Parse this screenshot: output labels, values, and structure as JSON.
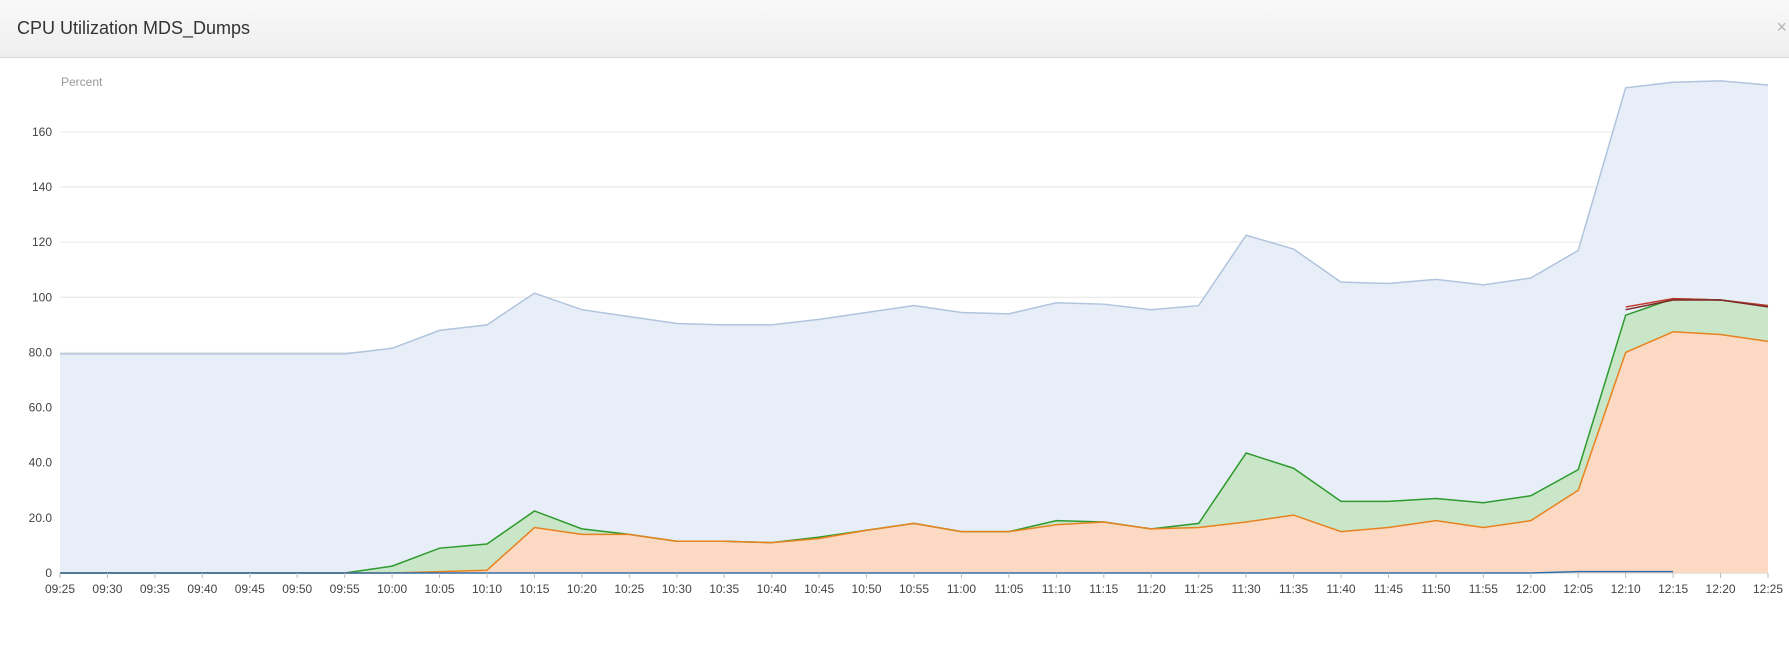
{
  "panel": {
    "title": "CPU Utilization MDS_Dumps",
    "close_glyph": "×"
  },
  "chart_data": {
    "type": "area",
    "title": "CPU Utilization MDS_Dumps",
    "ylabel": "Percent",
    "xlabel": "",
    "ylim": [
      0,
      177
    ],
    "y_ticks": [
      "0",
      "20.0",
      "40.0",
      "60.0",
      "80.0",
      "100",
      "120",
      "140",
      "160"
    ],
    "y_tick_values": [
      0,
      20,
      40,
      60,
      80,
      100,
      120,
      140,
      160
    ],
    "grid": true,
    "x": [
      "09:25",
      "09:30",
      "09:35",
      "09:40",
      "09:45",
      "09:50",
      "09:55",
      "10:00",
      "10:05",
      "10:10",
      "10:15",
      "10:20",
      "10:25",
      "10:30",
      "10:35",
      "10:40",
      "10:45",
      "10:50",
      "10:55",
      "11:00",
      "11:05",
      "11:10",
      "11:15",
      "11:20",
      "11:25",
      "11:30",
      "11:35",
      "11:40",
      "11:45",
      "11:50",
      "11:55",
      "12:00",
      "12:05",
      "12:10",
      "12:15",
      "12:20",
      "12:25"
    ],
    "series": [
      {
        "color": "#b0c4de",
        "fill": "#e8eef8",
        "values": [
          79.5,
          79.5,
          79.5,
          79.5,
          79.5,
          79.5,
          79.5,
          81.5,
          88,
          90,
          101.5,
          95.5,
          93,
          90.5,
          90,
          90,
          92,
          94.5,
          97,
          94.5,
          94,
          98,
          97.5,
          95.5,
          97,
          122.5,
          117.5,
          105.5,
          105,
          106.5,
          104.5,
          107,
          117,
          176,
          178,
          178.5,
          177
        ]
      },
      {
        "color": "#2e9a2e",
        "fill": "#c9e6c9",
        "values": [
          0,
          0,
          0,
          0,
          0,
          0,
          0,
          2.5,
          9,
          10.5,
          22.5,
          16,
          14,
          11.5,
          11.5,
          11,
          13,
          15.5,
          18,
          15,
          15,
          19,
          18.5,
          16,
          18,
          43.5,
          38,
          26,
          26,
          27,
          25.5,
          28,
          37.5,
          93.5,
          99.5,
          99,
          97
        ]
      },
      {
        "color": "#e8821e",
        "fill": "#fcd9c2",
        "values": [
          0,
          0,
          0,
          0,
          0,
          0,
          0,
          0,
          0.5,
          1,
          16.5,
          14,
          14,
          11.5,
          11.5,
          11,
          12.5,
          15.5,
          18,
          15,
          15,
          17.5,
          18.5,
          16,
          16.5,
          18.5,
          21,
          15,
          16.5,
          19,
          16.5,
          19,
          30,
          80,
          87.5,
          86.5,
          84
        ]
      },
      {
        "color": "#c0392b",
        "fill": "none",
        "values": [
          null,
          null,
          null,
          null,
          null,
          null,
          null,
          null,
          null,
          null,
          null,
          null,
          null,
          null,
          null,
          null,
          null,
          null,
          null,
          null,
          null,
          null,
          null,
          null,
          null,
          null,
          null,
          null,
          null,
          null,
          null,
          null,
          null,
          96.5,
          99.5,
          99,
          97
        ]
      },
      {
        "color": "#7a2a2a",
        "fill": "none",
        "values": [
          null,
          null,
          null,
          null,
          null,
          null,
          null,
          null,
          null,
          null,
          null,
          null,
          null,
          null,
          null,
          null,
          null,
          null,
          null,
          null,
          null,
          null,
          null,
          null,
          null,
          null,
          null,
          null,
          null,
          null,
          null,
          null,
          null,
          95.5,
          99,
          99,
          96.5
        ]
      },
      {
        "color": "#2f6ea8",
        "fill": "none",
        "values": [
          0,
          0,
          0,
          0,
          0,
          0,
          0,
          0,
          0,
          0,
          0,
          0,
          0,
          0,
          0,
          0,
          0,
          0,
          0,
          0,
          0,
          0,
          0,
          0,
          0,
          0,
          0,
          0,
          0,
          0,
          0,
          0,
          0.5,
          0.5,
          0.5,
          null,
          null
        ]
      }
    ]
  }
}
